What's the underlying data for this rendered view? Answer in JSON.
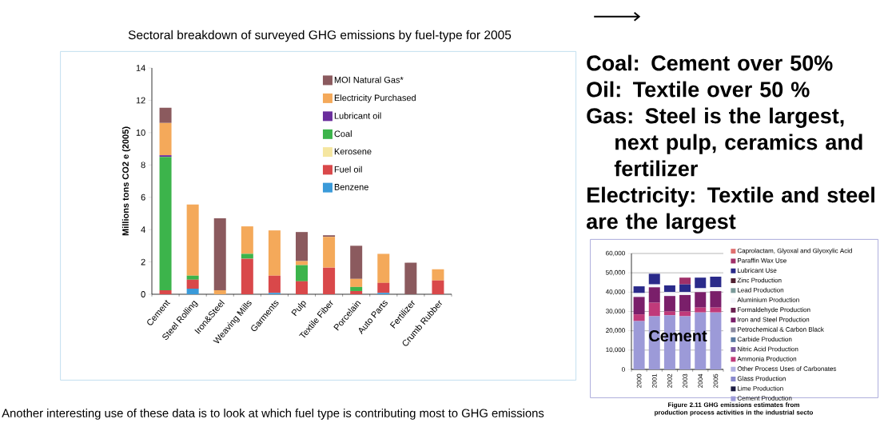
{
  "chart_data": [
    {
      "type": "bar",
      "title": "Sectoral breakdown of surveyed GHG emissions by fuel-type for 2005",
      "ylabel": "Millions tons CO2 e (2005)",
      "stacked": true,
      "categories": [
        "Cement",
        "Steel Rolling",
        "Iron&Steel",
        "Weaving Mills",
        "Garments",
        "Pulp",
        "Textile Fiber",
        "Porcelain",
        "Auto Parts",
        "Fertilizer",
        "Crumb Rubber"
      ],
      "ylim": [
        0,
        14
      ],
      "yticks": [
        0,
        2,
        4,
        6,
        8,
        10,
        12,
        14
      ],
      "legend": "top right",
      "series": [
        {
          "name": "Benzene",
          "color": "#3a9ad9",
          "values": [
            0,
            0.35,
            0,
            0,
            0.08,
            0,
            0,
            0,
            0.08,
            0,
            0
          ]
        },
        {
          "name": "Fuel oil",
          "color": "#d9484a",
          "values": [
            0.25,
            0.55,
            0,
            2.2,
            1.07,
            0.8,
            1.65,
            0.2,
            0.62,
            0,
            0.85
          ]
        },
        {
          "name": "Kerosene",
          "color": "#f5e6a0",
          "values": [
            0,
            0,
            0,
            0,
            0,
            0,
            0,
            0,
            0,
            0,
            0
          ]
        },
        {
          "name": "Coal",
          "color": "#3cb44b",
          "values": [
            8.25,
            0.25,
            0,
            0.3,
            0,
            1.0,
            0,
            0.25,
            0,
            0,
            0
          ]
        },
        {
          "name": "Lubricant oil",
          "color": "#6a2d9c",
          "values": [
            0.1,
            0,
            0,
            0,
            0,
            0,
            0,
            0,
            0,
            0,
            0
          ]
        },
        {
          "name": "Electricity Purchased",
          "color": "#f4a95a",
          "values": [
            2.0,
            4.4,
            0.25,
            1.7,
            2.8,
            0.25,
            1.9,
            0.5,
            1.8,
            0,
            0.7
          ]
        },
        {
          "name": "MOI Natural Gas*",
          "color": "#8b5a5e",
          "values": [
            0.95,
            0,
            4.45,
            0,
            0,
            1.8,
            0.1,
            2.05,
            0,
            1.95,
            0
          ]
        }
      ],
      "annotations": [
        "Coal: Cement  over 50%",
        "Oil: Textile  over 50 %",
        "Gas: Steel  is the largest, next pulp, ceramics and fertilizer",
        "Electricity: Textile and steel are the largest",
        "Another interesting use of these data is to look at which fuel type is contributing most to GHG emissions"
      ]
    },
    {
      "type": "bar",
      "stacked": true,
      "categories": [
        "2000",
        "2001",
        "2002",
        "2003",
        "2004",
        "2005"
      ],
      "ylim": [
        0,
        60000
      ],
      "yticks": [
        0,
        {
          "value": 10000,
          "label": "10,000"
        },
        {
          "value": 20000,
          "label": "20,000"
        },
        {
          "value": 30000,
          "label": "30,000"
        },
        {
          "value": 40000,
          "label": "40,000"
        },
        {
          "value": 50000,
          "label": "50,000"
        },
        {
          "value": 60000,
          "label": "60,000"
        }
      ],
      "grid": "y",
      "legend": "right",
      "series": [
        {
          "name": "Cement Production",
          "color": "#9c9ad8",
          "values": [
            25000,
            27500,
            28000,
            27500,
            29500,
            29500
          ]
        },
        {
          "name": "Lime Production",
          "color": "#1a1a40",
          "values": [
            null,
            null,
            null,
            null,
            null,
            null
          ]
        },
        {
          "name": "Glass Production",
          "color": "#8888cc",
          "values": [
            null,
            null,
            null,
            null,
            null,
            null
          ]
        },
        {
          "name": "Other Process Uses of Carbonates",
          "color": "#b0b0e0",
          "values": [
            null,
            null,
            null,
            null,
            null,
            null
          ]
        },
        {
          "name": "Ammonia Production",
          "color": "#c03a7a",
          "values": [
            3500,
            7000,
            2000,
            2500,
            2500,
            2500
          ]
        },
        {
          "name": "Nitric Acid Production",
          "color": "#7a5aa0",
          "values": [
            null,
            null,
            null,
            null,
            null,
            null
          ]
        },
        {
          "name": "Carbide Production",
          "color": "#5a7aa0",
          "values": [
            null,
            null,
            null,
            null,
            null,
            null
          ]
        },
        {
          "name": "Petrochemical & Carbon Black",
          "color": "#8a8aa0",
          "values": [
            null,
            null,
            null,
            null,
            null,
            null
          ]
        },
        {
          "name": "Iron and Steel Production",
          "color": "#7a1f6a",
          "values": [
            9000,
            8000,
            8000,
            8500,
            8000,
            8500
          ]
        },
        {
          "name": "Formaldehyde Production",
          "color": "#6a2050",
          "values": [
            null,
            null,
            null,
            null,
            null,
            null
          ]
        },
        {
          "name": "Aluminium Production",
          "color": "#f4f4fa",
          "values": [
            2000,
            1500,
            2000,
            1500,
            2000,
            2000
          ]
        },
        {
          "name": "Lead Production",
          "color": "#7a9a9a",
          "values": [
            null,
            null,
            null,
            null,
            null,
            null
          ]
        },
        {
          "name": "Zinc Production",
          "color": "#502030",
          "values": [
            null,
            null,
            null,
            null,
            null,
            null
          ]
        },
        {
          "name": "Lubricant Use",
          "color": "#2a2a8a",
          "values": [
            3500,
            5500,
            3500,
            4000,
            5500,
            5500
          ]
        },
        {
          "name": "Paraffin Wax Use",
          "color": "#a0306a",
          "values": [
            0,
            0,
            0,
            3500,
            0,
            0
          ]
        },
        {
          "name": "Caprolactam, Glyoxal and Glyoxylic Acid",
          "color": "#e07070",
          "values": [
            null,
            null,
            null,
            null,
            null,
            null
          ]
        }
      ],
      "annotations": [
        "Cement",
        "Figure 2.11 GHG emissions estimates from production process activities in the industrial secto"
      ]
    }
  ]
}
